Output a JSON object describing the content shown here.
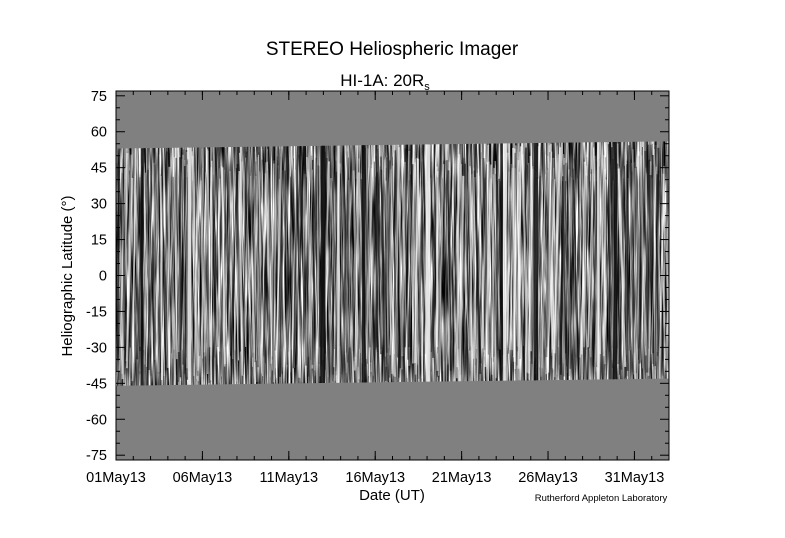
{
  "chart_data": {
    "type": "heatmap",
    "title": "STEREO Heliospheric Imager",
    "subtitle": {
      "main": "HI-1A: 20R",
      "sub": "s"
    },
    "xlabel": "Date (UT)",
    "ylabel": "Heliographic Latitude (°)",
    "ylim": [
      -77,
      77
    ],
    "xlim": [
      "2013-05-01",
      "2013-06-02"
    ],
    "x_ticks": [
      {
        "date": "2013-05-01",
        "label": "01May13"
      },
      {
        "date": "2013-05-06",
        "label": "06May13"
      },
      {
        "date": "2013-05-11",
        "label": "11May13"
      },
      {
        "date": "2013-05-16",
        "label": "16May13"
      },
      {
        "date": "2013-05-21",
        "label": "21May13"
      },
      {
        "date": "2013-05-26",
        "label": "26May13"
      },
      {
        "date": "2013-05-31",
        "label": "31May13"
      }
    ],
    "y_ticks": [
      {
        "value": 75,
        "label": "75"
      },
      {
        "value": 60,
        "label": "60"
      },
      {
        "value": 45,
        "label": "45"
      },
      {
        "value": 30,
        "label": "30"
      },
      {
        "value": 15,
        "label": "15"
      },
      {
        "value": 0,
        "label": "0"
      },
      {
        "value": -15,
        "label": "-15"
      },
      {
        "value": -30,
        "label": "-30"
      },
      {
        "value": -45,
        "label": "-45"
      },
      {
        "value": -60,
        "label": "-60"
      },
      {
        "value": -75,
        "label": "-75"
      }
    ],
    "data_coverage": {
      "lat_max_start": 53,
      "lat_max_end": 56,
      "lat_min_start": -46,
      "lat_min_end": -43
    },
    "no_data_color": "#808080",
    "grid": false,
    "legend": "none",
    "credit": "Rutherford Appleton Laboratory"
  }
}
